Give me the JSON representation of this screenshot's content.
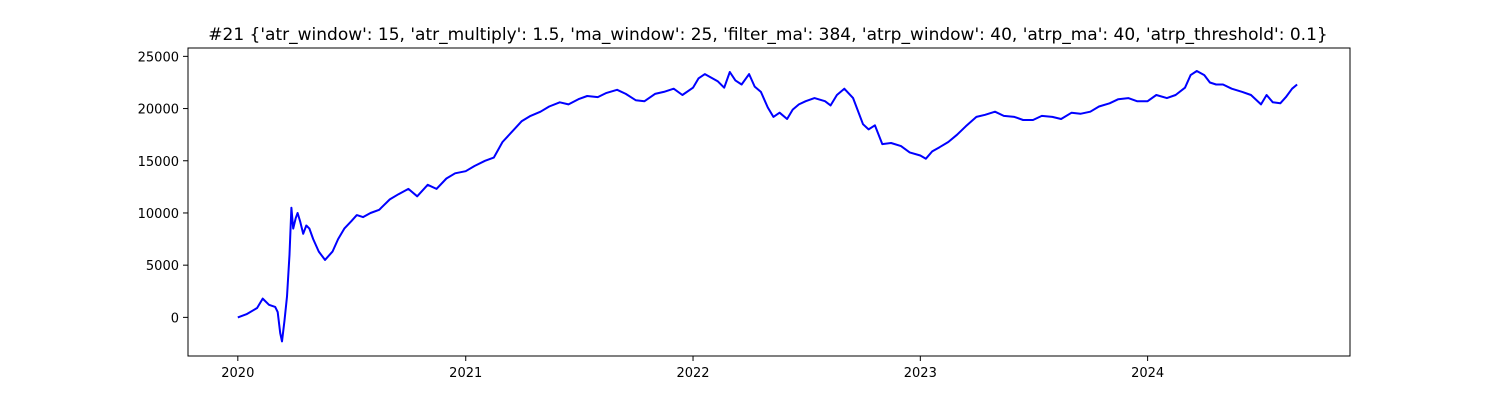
{
  "chart_data": {
    "type": "line",
    "title": "#21 {'atr_window': 15, 'atr_multiply': 1.5, 'ma_window': 25, 'filter_ma': 384, 'atrp_window': 40, 'atrp_ma': 40, 'atrp_threshold': 0.1}",
    "xlabel": "",
    "ylabel": "",
    "x_tick_labels": [
      "2020",
      "2021",
      "2022",
      "2023",
      "2024"
    ],
    "y_tick_labels": [
      "0",
      "5000",
      "10000",
      "15000",
      "20000",
      "25000"
    ],
    "y_ticks": [
      0,
      5000,
      10000,
      15000,
      20000,
      25000
    ],
    "xlim": [
      "2019-10-13",
      "2024-11-21"
    ],
    "ylim": [
      -3700,
      25800
    ],
    "grid": false,
    "line_color": "#0000ff",
    "series": [
      {
        "x": [
          "2020-01-01",
          "2020-01-15",
          "2020-02-01",
          "2020-02-10",
          "2020-02-20",
          "2020-03-01",
          "2020-03-05",
          "2020-03-09",
          "2020-03-12",
          "2020-03-16",
          "2020-03-20",
          "2020-03-24",
          "2020-03-27",
          "2020-03-30",
          "2020-04-03",
          "2020-04-06",
          "2020-04-10",
          "2020-04-15",
          "2020-04-20",
          "2020-04-25",
          "2020-05-01",
          "2020-05-10",
          "2020-05-20",
          "2020-06-01",
          "2020-06-10",
          "2020-06-20",
          "2020-07-01",
          "2020-07-10",
          "2020-07-20",
          "2020-08-01",
          "2020-08-15",
          "2020-09-01",
          "2020-09-15",
          "2020-10-01",
          "2020-10-15",
          "2020-11-01",
          "2020-11-15",
          "2020-12-01",
          "2020-12-15",
          "2021-01-01",
          "2021-01-15",
          "2021-02-01",
          "2021-02-15",
          "2021-03-01",
          "2021-03-15",
          "2021-04-01",
          "2021-04-15",
          "2021-05-01",
          "2021-05-15",
          "2021-06-01",
          "2021-06-15",
          "2021-07-01",
          "2021-07-15",
          "2021-08-01",
          "2021-08-15",
          "2021-09-01",
          "2021-09-15",
          "2021-10-01",
          "2021-10-15",
          "2021-11-01",
          "2021-11-15",
          "2021-12-01",
          "2021-12-15",
          "2022-01-01",
          "2022-01-10",
          "2022-01-20",
          "2022-02-01",
          "2022-02-10",
          "2022-02-20",
          "2022-03-01",
          "2022-03-10",
          "2022-03-20",
          "2022-04-01",
          "2022-04-10",
          "2022-04-20",
          "2022-05-01",
          "2022-05-10",
          "2022-05-20",
          "2022-06-01",
          "2022-06-10",
          "2022-06-20",
          "2022-07-01",
          "2022-07-15",
          "2022-08-01",
          "2022-08-10",
          "2022-08-20",
          "2022-09-01",
          "2022-09-15",
          "2022-10-01",
          "2022-10-10",
          "2022-10-20",
          "2022-11-01",
          "2022-11-15",
          "2022-12-01",
          "2022-12-15",
          "2023-01-01",
          "2023-01-10",
          "2023-01-20",
          "2023-02-01",
          "2023-02-15",
          "2023-03-01",
          "2023-03-15",
          "2023-04-01",
          "2023-04-15",
          "2023-05-01",
          "2023-05-15",
          "2023-06-01",
          "2023-06-15",
          "2023-07-01",
          "2023-07-15",
          "2023-08-01",
          "2023-08-15",
          "2023-09-01",
          "2023-09-15",
          "2023-10-01",
          "2023-10-15",
          "2023-11-01",
          "2023-11-15",
          "2023-12-01",
          "2023-12-15",
          "2024-01-01",
          "2024-01-15",
          "2024-02-01",
          "2024-02-15",
          "2024-03-01",
          "2024-03-10",
          "2024-03-20",
          "2024-04-01",
          "2024-04-10",
          "2024-04-20",
          "2024-05-01",
          "2024-05-15",
          "2024-06-01",
          "2024-06-15",
          "2024-07-01",
          "2024-07-10",
          "2024-07-20",
          "2024-08-01",
          "2024-08-10",
          "2024-08-20",
          "2024-08-28"
        ],
        "values": [
          0,
          300,
          900,
          1800,
          1200,
          1000,
          500,
          -1500,
          -2300,
          -300,
          2000,
          6000,
          10500,
          8500,
          9500,
          10000,
          9200,
          8000,
          8800,
          8500,
          7500,
          6300,
          5500,
          6300,
          7500,
          8500,
          9200,
          9800,
          9600,
          10000,
          10300,
          11300,
          11800,
          12300,
          11600,
          12700,
          12300,
          13300,
          13800,
          14000,
          14500,
          15000,
          15300,
          16800,
          17700,
          18800,
          19300,
          19700,
          20200,
          20600,
          20400,
          20900,
          21200,
          21100,
          21500,
          21800,
          21400,
          20800,
          20700,
          21400,
          21600,
          21900,
          21300,
          22000,
          22900,
          23300,
          22900,
          22600,
          22000,
          23500,
          22700,
          22300,
          23300,
          22100,
          21600,
          20100,
          19200,
          19600,
          19000,
          19900,
          20400,
          20700,
          21000,
          20700,
          20300,
          21300,
          21900,
          21000,
          18500,
          18000,
          18400,
          16600,
          16700,
          16400,
          15800,
          15500,
          15200,
          15900,
          16300,
          16800,
          17500,
          18300,
          19200,
          19400,
          19700,
          19300,
          19200,
          18900,
          18900,
          19300,
          19200,
          19000,
          19600,
          19500,
          19700,
          20200,
          20500,
          20900,
          21000,
          20700,
          20700,
          21300,
          21000,
          21300,
          22000,
          23200,
          23600,
          23200,
          22500,
          22300,
          22300,
          21900,
          21600,
          21300,
          20400,
          21300,
          20600,
          20500,
          21100,
          21900,
          22300
        ]
      }
    ]
  }
}
